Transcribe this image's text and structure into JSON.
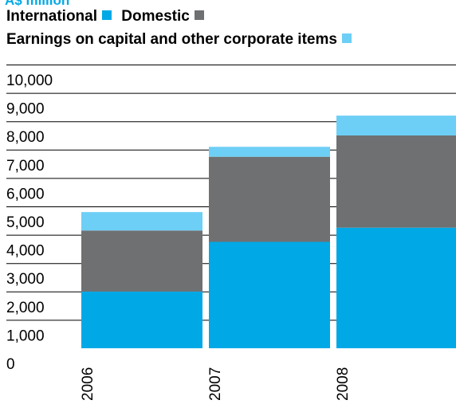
{
  "chart_data": {
    "type": "bar",
    "stacked": true,
    "units_label": "A$ million",
    "categories": [
      "2006",
      "2007",
      "2008"
    ],
    "series": [
      {
        "name": "International",
        "color": "#00a9e6",
        "values": [
          2000,
          3750,
          4250
        ]
      },
      {
        "name": "Domestic",
        "color": "#6f7072",
        "values": [
          2150,
          3000,
          3250
        ]
      },
      {
        "name": "Earnings on capital and other corporate items",
        "color": "#6dcff6",
        "values": [
          650,
          350,
          700
        ]
      }
    ],
    "y_ticks": [
      "0",
      "1,000",
      "2,000",
      "3,000",
      "4,000",
      "5,000",
      "6,000",
      "7,000",
      "8,000",
      "9,000",
      "10,000"
    ],
    "ylim": [
      0,
      10000
    ],
    "grid": true
  }
}
